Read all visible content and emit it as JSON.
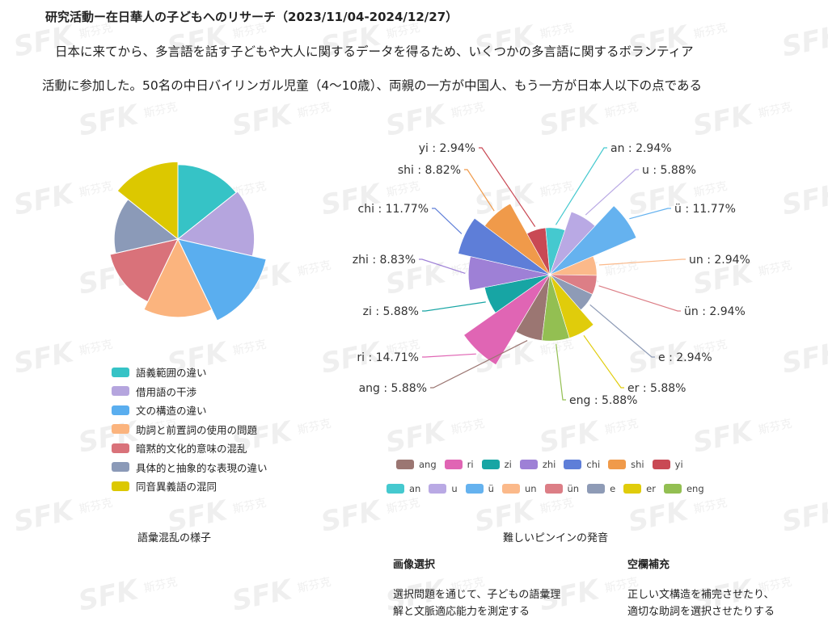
{
  "page": {
    "title": "研究活動ー在日華人の子どもへのリサーチ（2023/11/04-2024/12/27）",
    "paragraph_1": "日本に来てから、多言語を話す子どもや大人に関するデータを得るため、いくつかの多言語に関するボランティア",
    "paragraph_2": "活動に参加した。50名の中日バイリンガル児童（4〜10歳）、両親の一方が中国人、もう一方が日本人以下の点である",
    "left_caption": "語彙混乱の様子",
    "right_caption": "難しいピンインの発音",
    "section_1_title": "画像選択",
    "section_1_text_1": "選択問題を通じて、子どもの語彙理",
    "section_1_text_2": "解と文脈適応能力を測定する",
    "section_2_title": "空欄補充",
    "section_2_text_1": "正しい文構造を補完させたり、",
    "section_2_text_2": "適切な助詞を選択させたりする",
    "watermark_text": "SFK",
    "watermark_sub": "斯芬克"
  },
  "chart_data": [
    {
      "type": "pie",
      "variant": "nightingale-rose",
      "title": "",
      "categories": [
        "語義範囲の違い",
        "借用語の干渉",
        "文の構造の違い",
        "助詞と前置詞の使用の問題",
        "暗黙的文化的意味の混乱",
        "具体的と抽象的な表現の違い",
        "同音異義語の混同"
      ],
      "values": [
        78,
        82,
        115,
        86,
        68,
        57,
        84
      ],
      "colors": [
        "#36c3c6",
        "#b5a5de",
        "#5aaeef",
        "#fbb47e",
        "#d9727a",
        "#8b9ab8",
        "#dcc800"
      ],
      "legend": "bottom-left"
    },
    {
      "type": "pie",
      "variant": "nightingale-rose",
      "title": "",
      "categories": [
        "ang",
        "ri",
        "zi",
        "zhi",
        "chi",
        "shi",
        "yi",
        "an",
        "u",
        "ü",
        "un",
        "ün",
        "e",
        "er",
        "eng"
      ],
      "values": [
        5.88,
        14.71,
        5.88,
        8.83,
        11.77,
        8.82,
        2.94,
        2.94,
        5.88,
        11.77,
        2.94,
        2.94,
        2.94,
        5.88,
        5.88
      ],
      "labels": [
        "ang : 5.88%",
        "ri : 14.71%",
        "zi : 5.88%",
        "zhi : 8.83%",
        "chi : 11.77%",
        "shi : 8.82%",
        "yi : 2.94%",
        "an : 2.94%",
        "u : 5.88%",
        "ü : 11.77%",
        "un : 2.94%",
        "ün : 2.94%",
        "e : 2.94%",
        "er : 5.88%",
        "eng : 5.88%"
      ],
      "colors": [
        "#9b7672",
        "#e065b4",
        "#17a5a4",
        "#9e80d6",
        "#5e7ed8",
        "#f09a4a",
        "#c94954",
        "#45c9cf",
        "#b9a9e4",
        "#65b2ef",
        "#fbb98a",
        "#dc7e86",
        "#8e9bb6",
        "#e0cc0b",
        "#93bf52"
      ],
      "legend": "bottom"
    }
  ]
}
